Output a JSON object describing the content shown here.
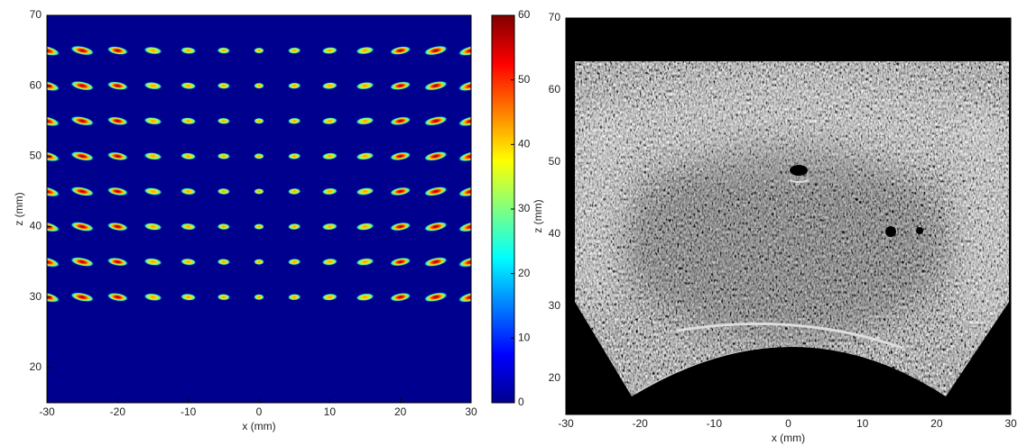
{
  "chart_data": [
    {
      "type": "heatmap",
      "xlabel": "x (mm)",
      "ylabel": "z (mm)",
      "xlim": [
        -30,
        30
      ],
      "ylim": [
        15,
        70
      ],
      "xticks": [
        -30,
        -20,
        -10,
        0,
        10,
        20,
        30
      ],
      "yticks": [
        20,
        30,
        40,
        50,
        60,
        70
      ],
      "grid_x": [
        -30,
        -25,
        -20,
        -15,
        -10,
        -5,
        0,
        5,
        10,
        15,
        20,
        25,
        30
      ],
      "grid_z": [
        30,
        35,
        40,
        45,
        50,
        55,
        60,
        65
      ],
      "colormap": "jet",
      "clim": [
        0,
        60
      ],
      "cticks": [
        0,
        10,
        20,
        30,
        40,
        50,
        60
      ]
    },
    {
      "type": "image",
      "xlabel": "x (mm)",
      "ylabel": "z (mm)",
      "xlim": [
        -30,
        30
      ],
      "ylim": [
        15,
        70
      ],
      "xticks": [
        -30,
        -20,
        -10,
        0,
        10,
        20,
        30
      ],
      "yticks": [
        20,
        30,
        40,
        50,
        60,
        70
      ],
      "colormap": "gray"
    }
  ]
}
